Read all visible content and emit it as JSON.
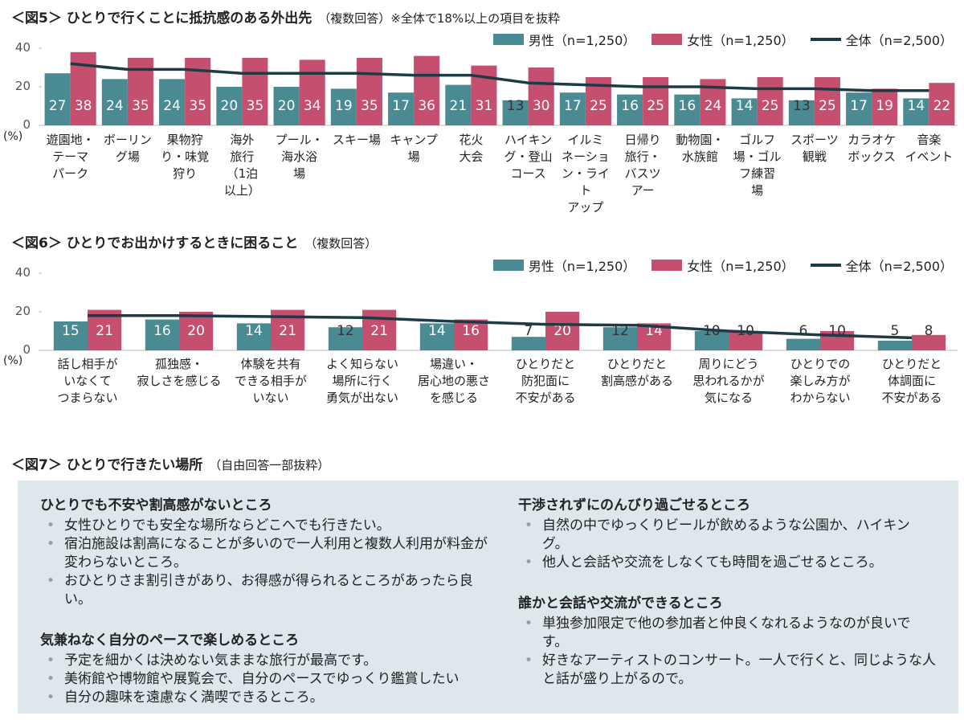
{
  "chart_data": [
    {
      "type": "bar",
      "title": "＜図5＞ ひとりで行くことに抵抗感のある外出先",
      "subtitle": "（複数回答）※全体で18%以上の項目を抜粋",
      "y_unit": "(%)",
      "categories": [
        "遊園地・\nテーマ\nパーク",
        "ボーリン\nグ場",
        "果物狩\nり・味覚\n狩り",
        "海外\n旅行\n（1泊\n以上）",
        "プール・\n海水浴\n場",
        "スキー場",
        "キャンプ\n場",
        "花火\n大会",
        "ハイキン\nグ・登山\nコース",
        "イルミ\nネーショ\nン・ライト\nアップ",
        "日帰り\n旅行・\nバスツ\nアー",
        "動物園・\n水族館",
        "ゴルフ\n場・ゴル\nフ練習\n場",
        "スポーツ\n観戦",
        "カラオケ\nボックス",
        "音楽\nイベント"
      ],
      "series": [
        {
          "name": "男性（n=1,250）",
          "color": "#4a8a93",
          "values": [
            27,
            24,
            24,
            20,
            20,
            19,
            17,
            21,
            13,
            17,
            16,
            16,
            14,
            13,
            17,
            14
          ]
        },
        {
          "name": "女性（n=1,250）",
          "color": "#c44f6f",
          "values": [
            38,
            35,
            35,
            35,
            34,
            35,
            36,
            31,
            30,
            25,
            25,
            24,
            25,
            25,
            19,
            22
          ]
        },
        {
          "name": "全体（n=2,500）",
          "color": "#1c3b44",
          "type": "line",
          "values": [
            32,
            29,
            29,
            27,
            27,
            27,
            26,
            26,
            22,
            21,
            20,
            20,
            19,
            19,
            18,
            18
          ]
        }
      ],
      "ylim": [
        0,
        40
      ],
      "yticks": [
        0,
        20,
        40
      ],
      "grid": false,
      "legend": "top-right"
    },
    {
      "type": "bar",
      "title": "＜図6＞ ひとりでお出かけするときに困ること",
      "subtitle": "（複数回答）",
      "y_unit": "(%)",
      "categories": [
        "話し相手が\nいなくて\nつまらない",
        "孤独感・\n寂しさを感じる",
        "体験を共有\nできる相手が\nいない",
        "よく知らない\n場所に行く\n勇気が出ない",
        "場違い・\n居心地の悪さ\nを感じる",
        "ひとりだと\n防犯面に\n不安がある",
        "ひとりだと\n割高感がある",
        "周りにどう\n思われるかが\n気になる",
        "ひとりでの\n楽しみ方が\nわからない",
        "ひとりだと\n体調面に\n不安がある"
      ],
      "series": [
        {
          "name": "男性（n=1,250）",
          "color": "#4a8a93",
          "values": [
            15,
            16,
            14,
            12,
            14,
            7,
            12,
            10,
            6,
            5
          ]
        },
        {
          "name": "女性（n=1,250）",
          "color": "#c44f6f",
          "values": [
            21,
            20,
            21,
            21,
            16,
            20,
            14,
            10,
            10,
            8
          ]
        },
        {
          "name": "全体（n=2,500）",
          "color": "#1c3b44",
          "type": "line",
          "values": [
            18,
            18,
            17.5,
            17,
            15,
            13.5,
            13,
            10,
            8,
            6.5
          ]
        }
      ],
      "ylim": [
        0,
        40
      ],
      "yticks": [
        0,
        20,
        40
      ],
      "grid": false,
      "legend": "top-right"
    }
  ],
  "section7": {
    "title": "＜図7＞ ひとりで行きたい場所",
    "subtitle": "（自由回答一部抜粋）",
    "columns": [
      [
        {
          "heading": "ひとりでも不安や割高感がないところ",
          "items": [
            "女性ひとりでも安全な場所ならどこへでも行きたい。",
            "宿泊施設は割高になることが多いので一人利用と複数人利用が料金が変わらないところ。",
            "おひとりさま割引きがあり、お得感が得られるところがあったら良い。"
          ]
        },
        {
          "heading": "気兼ねなく自分のペースで楽しめるところ",
          "items": [
            "予定を細かくは決めない気ままな旅行が最高です。",
            "美術館や博物館や展覧会で、自分のペースでゆっくり鑑賞したい",
            "自分の趣味を遠慮なく満喫できるところ。"
          ]
        }
      ],
      [
        {
          "heading": "干渉されずにのんびり過ごせるところ",
          "items": [
            "自然の中でゆっくりビールが飲めるような公園か、ハイキング。",
            "他人と会話や交流をしなくても時間を過ごせるところ。"
          ]
        },
        {
          "heading": "誰かと会話や交流ができるところ",
          "items": [
            "単独参加限定で他の参加者と仲良くなれるようなのが良いです。",
            "好きなアーティストのコンサート。一人で行くと、同じような人と話が盛り上がるので。"
          ]
        }
      ]
    ]
  }
}
